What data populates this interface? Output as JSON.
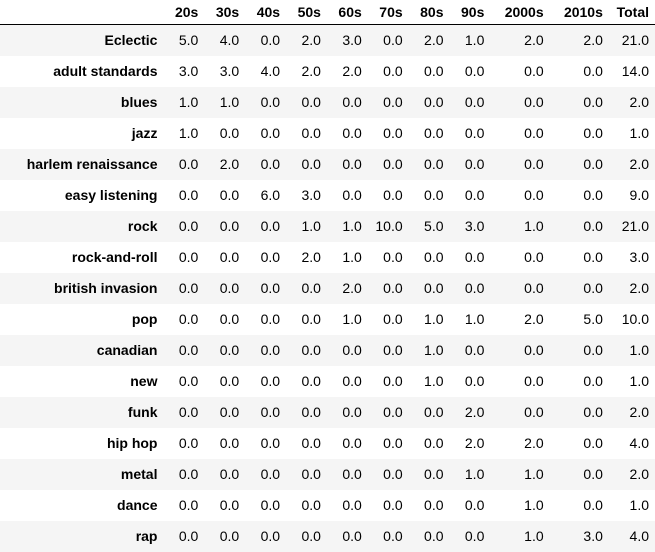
{
  "table": {
    "corner_label": "",
    "columns": [
      "20s",
      "30s",
      "40s",
      "50s",
      "60s",
      "70s",
      "80s",
      "90s",
      "2000s",
      "2010s",
      "Total"
    ],
    "rows": [
      {
        "label": "Eclectic",
        "values": [
          "5.0",
          "4.0",
          "0.0",
          "2.0",
          "3.0",
          "0.0",
          "2.0",
          "1.0",
          "2.0",
          "2.0",
          "21.0"
        ]
      },
      {
        "label": "adult standards",
        "values": [
          "3.0",
          "3.0",
          "4.0",
          "2.0",
          "2.0",
          "0.0",
          "0.0",
          "0.0",
          "0.0",
          "0.0",
          "14.0"
        ]
      },
      {
        "label": "blues",
        "values": [
          "1.0",
          "1.0",
          "0.0",
          "0.0",
          "0.0",
          "0.0",
          "0.0",
          "0.0",
          "0.0",
          "0.0",
          "2.0"
        ]
      },
      {
        "label": "jazz",
        "values": [
          "1.0",
          "0.0",
          "0.0",
          "0.0",
          "0.0",
          "0.0",
          "0.0",
          "0.0",
          "0.0",
          "0.0",
          "1.0"
        ]
      },
      {
        "label": "harlem renaissance",
        "values": [
          "0.0",
          "2.0",
          "0.0",
          "0.0",
          "0.0",
          "0.0",
          "0.0",
          "0.0",
          "0.0",
          "0.0",
          "2.0"
        ]
      },
      {
        "label": "easy listening",
        "values": [
          "0.0",
          "0.0",
          "6.0",
          "3.0",
          "0.0",
          "0.0",
          "0.0",
          "0.0",
          "0.0",
          "0.0",
          "9.0"
        ]
      },
      {
        "label": "rock",
        "values": [
          "0.0",
          "0.0",
          "0.0",
          "1.0",
          "1.0",
          "10.0",
          "5.0",
          "3.0",
          "1.0",
          "0.0",
          "21.0"
        ]
      },
      {
        "label": "rock-and-roll",
        "values": [
          "0.0",
          "0.0",
          "0.0",
          "2.0",
          "1.0",
          "0.0",
          "0.0",
          "0.0",
          "0.0",
          "0.0",
          "3.0"
        ]
      },
      {
        "label": "british invasion",
        "values": [
          "0.0",
          "0.0",
          "0.0",
          "0.0",
          "2.0",
          "0.0",
          "0.0",
          "0.0",
          "0.0",
          "0.0",
          "2.0"
        ]
      },
      {
        "label": "pop",
        "values": [
          "0.0",
          "0.0",
          "0.0",
          "0.0",
          "1.0",
          "0.0",
          "1.0",
          "1.0",
          "2.0",
          "5.0",
          "10.0"
        ]
      },
      {
        "label": "canadian",
        "values": [
          "0.0",
          "0.0",
          "0.0",
          "0.0",
          "0.0",
          "0.0",
          "1.0",
          "0.0",
          "0.0",
          "0.0",
          "1.0"
        ]
      },
      {
        "label": "new",
        "values": [
          "0.0",
          "0.0",
          "0.0",
          "0.0",
          "0.0",
          "0.0",
          "1.0",
          "0.0",
          "0.0",
          "0.0",
          "1.0"
        ]
      },
      {
        "label": "funk",
        "values": [
          "0.0",
          "0.0",
          "0.0",
          "0.0",
          "0.0",
          "0.0",
          "0.0",
          "2.0",
          "0.0",
          "0.0",
          "2.0"
        ]
      },
      {
        "label": "hip hop",
        "values": [
          "0.0",
          "0.0",
          "0.0",
          "0.0",
          "0.0",
          "0.0",
          "0.0",
          "2.0",
          "2.0",
          "0.0",
          "4.0"
        ]
      },
      {
        "label": "metal",
        "values": [
          "0.0",
          "0.0",
          "0.0",
          "0.0",
          "0.0",
          "0.0",
          "0.0",
          "1.0",
          "1.0",
          "0.0",
          "2.0"
        ]
      },
      {
        "label": "dance",
        "values": [
          "0.0",
          "0.0",
          "0.0",
          "0.0",
          "0.0",
          "0.0",
          "0.0",
          "0.0",
          "1.0",
          "0.0",
          "1.0"
        ]
      },
      {
        "label": "rap",
        "values": [
          "0.0",
          "0.0",
          "0.0",
          "0.0",
          "0.0",
          "0.0",
          "0.0",
          "0.0",
          "1.0",
          "3.0",
          "4.0"
        ]
      }
    ]
  },
  "colors": {
    "background": "#ffffff",
    "stripe": "#f5f5f5",
    "text": "#000000",
    "header_rule": "#000000"
  }
}
